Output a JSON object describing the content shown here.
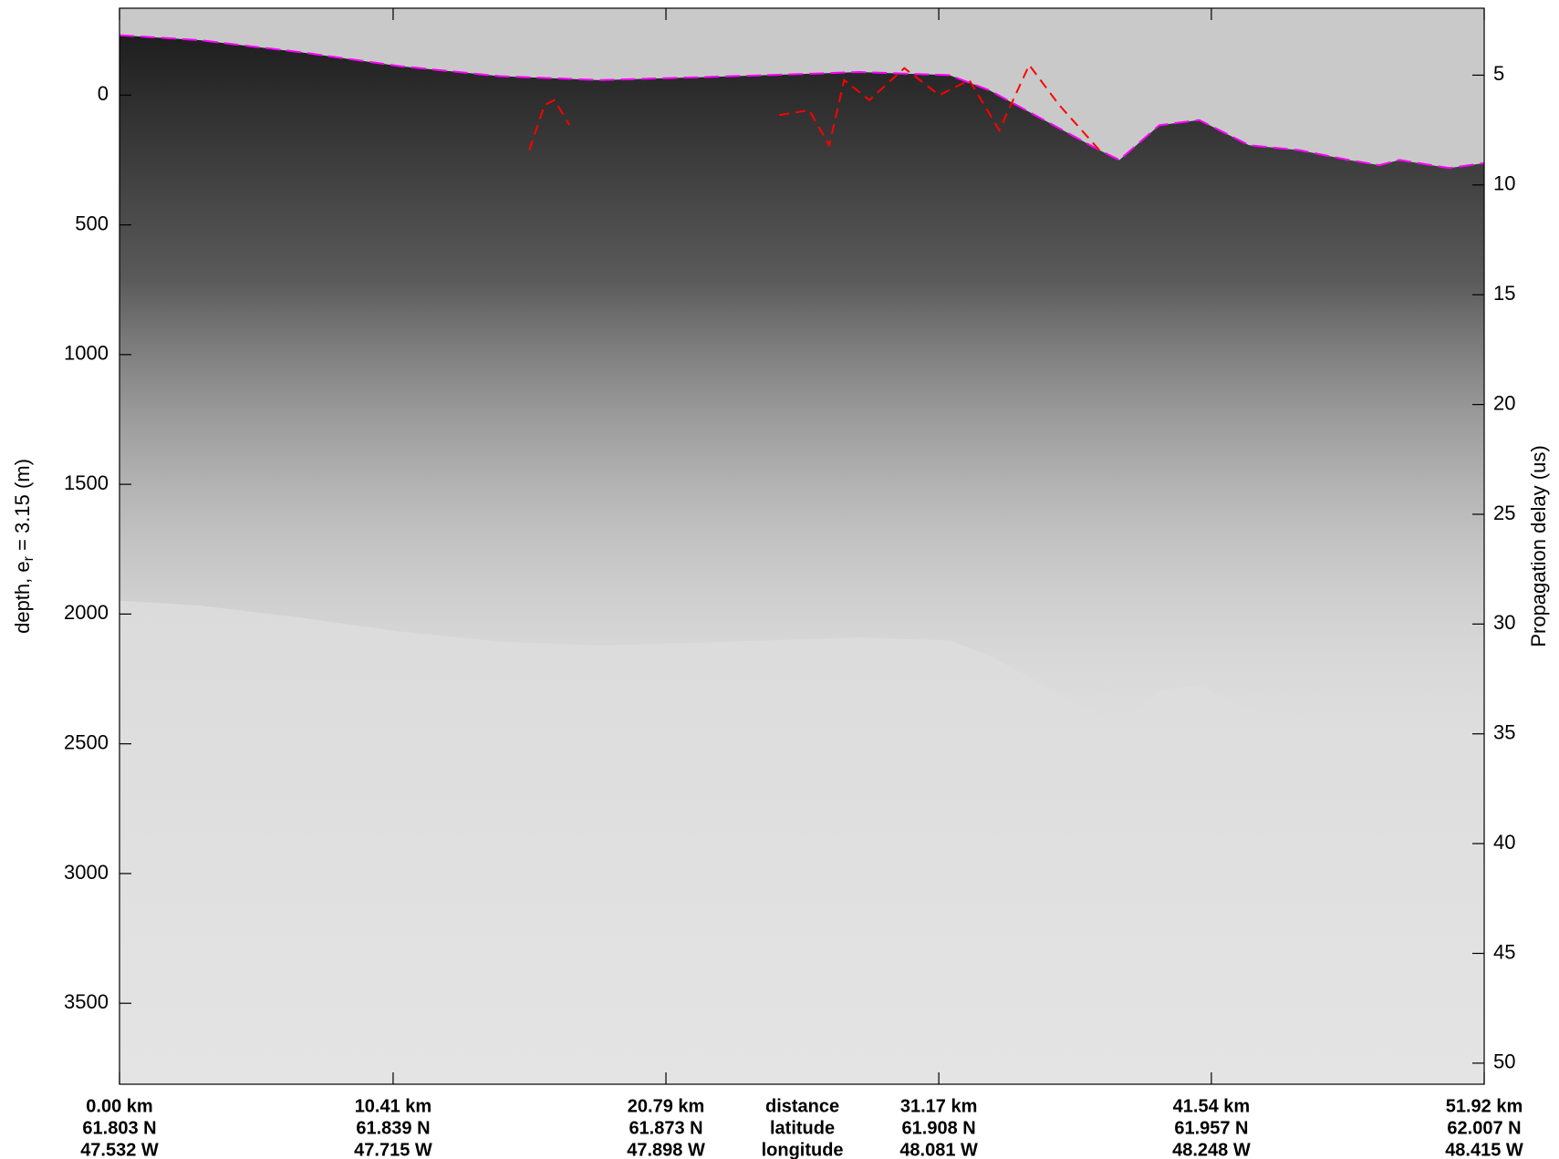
{
  "chart_data": {
    "type": "line",
    "ylabel_parts": [
      "depth, e",
      "r",
      " = 3.15 (m)"
    ],
    "y2label": "Propagation delay (us)",
    "xlim": [
      0,
      51.92
    ],
    "xticks": [
      {
        "value": 0,
        "label": "0.00 km"
      },
      {
        "value": 10.41,
        "label": "10.41 km"
      },
      {
        "value": 20.79,
        "label": "20.79 km"
      },
      {
        "value": 31.17,
        "label": "31.17 km"
      },
      {
        "value": 41.54,
        "label": "41.54 km"
      },
      {
        "value": 51.92,
        "label": "51.92 km"
      }
    ],
    "xtick_latitudes": [
      "61.803 N",
      "61.839 N",
      "61.873 N",
      "61.908 N",
      "61.957 N",
      "62.007 N"
    ],
    "xtick_longitudes": [
      "47.532 W",
      "47.715 W",
      "47.898 W",
      "48.081 W",
      "48.248 W",
      "48.415 W"
    ],
    "x_row_labels": [
      "distance",
      "latitude",
      "longitude"
    ],
    "ylim": [
      3812,
      -335
    ],
    "yticks": [
      0,
      500,
      1000,
      1500,
      2000,
      2500,
      3000,
      3500
    ],
    "y2lim": [
      50.96,
      1.95
    ],
    "y2ticks": [
      5,
      10,
      15,
      20,
      25,
      30,
      35,
      40,
      45,
      50
    ],
    "series": [
      {
        "color": "#ff00ff",
        "x": [
          0,
          3.04,
          6.85,
          10.65,
          14.45,
          18.26,
          22.06,
          25.87,
          28.15,
          31.57,
          33.09,
          37.28,
          38.04,
          39.56,
          41.08,
          42.98,
          44.88,
          46.78,
          47.93,
          48.69,
          50.59,
          51.92
        ],
        "values": [
          -231,
          -212,
          -166,
          -112,
          -73,
          -58,
          -69,
          -81,
          -89,
          -77,
          -19,
          212,
          250,
          116,
          96,
          193,
          212,
          250,
          270,
          250,
          281,
          262
        ]
      },
      {
        "color": "#ff0000",
        "x": [
          15.59,
          16.17,
          16.55,
          17.12,
          20.0,
          25.1,
          26.24,
          27.0,
          27.57,
          28.53,
          29.86,
          31.19,
          32.33,
          33.47,
          34.61,
          35.75,
          37.28
        ],
        "values": [
          212,
          38,
          19,
          116,
          null,
          77,
          58,
          193,
          -58,
          19,
          -104,
          0,
          -58,
          135,
          -116,
          38,
          212
        ]
      }
    ]
  }
}
